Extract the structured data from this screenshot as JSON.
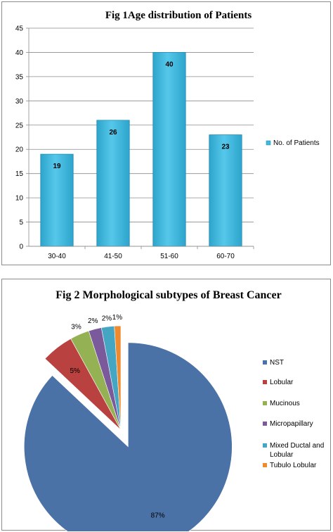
{
  "chart_data": [
    {
      "type": "bar",
      "title": "Fig 1Age distribution  of Patients",
      "categories": [
        "30-40",
        "41-50",
        "51-60",
        "60-70"
      ],
      "series": [
        {
          "name": "No. of Patients",
          "values": [
            19,
            26,
            40,
            23
          ]
        }
      ],
      "data_labels": [
        "19",
        "26",
        "40",
        "23"
      ],
      "ylim": [
        0,
        45
      ],
      "yticks": [
        0,
        5,
        10,
        15,
        20,
        25,
        30,
        35,
        40,
        45
      ],
      "grid": true,
      "legend_position": "right",
      "colors": {
        "bar": "#3fb9df",
        "bar_edge": "#1f8fb3",
        "grid": "#8c8c8c"
      }
    },
    {
      "type": "pie",
      "title": "Fig 2 Morphological subtypes of Breast Cancer",
      "labels": [
        "NST",
        "Lobular",
        "Mucinous",
        "Micropapillary",
        "Mixed Ductal and Lobular",
        "Tubulo Lobular"
      ],
      "values": [
        87,
        5,
        3,
        2,
        2,
        1
      ],
      "data_labels": [
        "87%",
        "5%",
        "3%",
        "2%",
        "2%",
        "1%"
      ],
      "exploded": "NST",
      "legend_position": "right",
      "colors": [
        "#4a72a6",
        "#b9413f",
        "#94b154",
        "#7a5a9b",
        "#44a6c2",
        "#ef8a2f"
      ]
    }
  ]
}
